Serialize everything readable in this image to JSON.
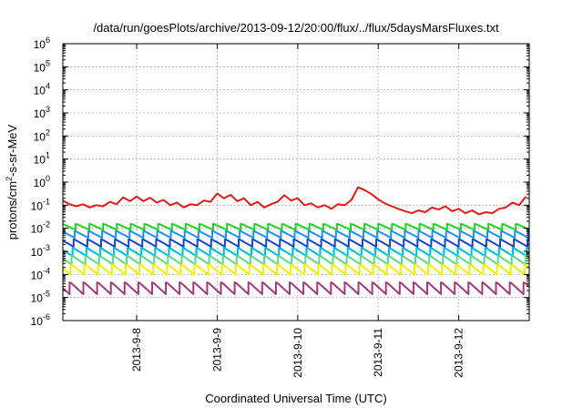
{
  "chart_data": {
    "type": "line",
    "title": "/data/run/goesPlots/archive/2013-09-12/20:00/flux/../flux/5daysMarsFluxes.txt",
    "xlabel": "Coordinated Universal Time (UTC)",
    "ylabel": {
      "before": "protons/cm",
      "exponent": "2",
      "after": "-s-sr-MeV"
    },
    "yscale": "log",
    "ylim": [
      1e-06,
      1000000.0
    ],
    "ytick_exponents": [
      -6,
      -5,
      -4,
      -3,
      -2,
      -1,
      0,
      1,
      2,
      3,
      4,
      5,
      6
    ],
    "ytick_base": "10",
    "xlim": [
      "2013-09-07 02:00",
      "2013-09-12 21:00"
    ],
    "xticks": [
      {
        "label": "2013-9-8",
        "at": "2013-09-08 00:00"
      },
      {
        "label": "2013-9-9",
        "at": "2013-09-09 00:00"
      },
      {
        "label": "2013-9-10",
        "at": "2013-09-10 00:00"
      },
      {
        "label": "2013-9-11",
        "at": "2013-09-11 00:00"
      },
      {
        "label": "2013-9-12",
        "at": "2013-09-12 00:00"
      }
    ],
    "grid": true,
    "series": [
      {
        "color": "#e31a1c",
        "times": [
          "2013-09-07 02:00",
          "2013-09-07 04:00",
          "2013-09-07 06:00",
          "2013-09-07 08:00",
          "2013-09-07 10:00",
          "2013-09-07 12:00",
          "2013-09-07 14:00",
          "2013-09-07 16:00",
          "2013-09-07 18:00",
          "2013-09-07 20:00",
          "2013-09-07 22:00",
          "2013-09-08 00:00",
          "2013-09-08 02:00",
          "2013-09-08 04:00",
          "2013-09-08 06:00",
          "2013-09-08 08:00",
          "2013-09-08 10:00",
          "2013-09-08 12:00",
          "2013-09-08 14:00",
          "2013-09-08 16:00",
          "2013-09-08 18:00",
          "2013-09-08 20:00",
          "2013-09-08 22:00",
          "2013-09-09 00:00",
          "2013-09-09 02:00",
          "2013-09-09 04:00",
          "2013-09-09 06:00",
          "2013-09-09 08:00",
          "2013-09-09 10:00",
          "2013-09-09 12:00",
          "2013-09-09 14:00",
          "2013-09-09 16:00",
          "2013-09-09 18:00",
          "2013-09-09 20:00",
          "2013-09-09 22:00",
          "2013-09-10 00:00",
          "2013-09-10 02:00",
          "2013-09-10 04:00",
          "2013-09-10 06:00",
          "2013-09-10 08:00",
          "2013-09-10 10:00",
          "2013-09-10 12:00",
          "2013-09-10 14:00",
          "2013-09-10 16:00",
          "2013-09-10 18:00",
          "2013-09-10 20:00",
          "2013-09-10 22:00",
          "2013-09-11 00:00",
          "2013-09-11 02:00",
          "2013-09-11 04:00",
          "2013-09-11 06:00",
          "2013-09-11 08:00",
          "2013-09-11 10:00",
          "2013-09-11 12:00",
          "2013-09-11 14:00",
          "2013-09-11 16:00",
          "2013-09-11 18:00",
          "2013-09-11 20:00",
          "2013-09-11 22:00",
          "2013-09-12 00:00",
          "2013-09-12 02:00",
          "2013-09-12 04:00",
          "2013-09-12 06:00",
          "2013-09-12 08:00",
          "2013-09-12 10:00",
          "2013-09-12 12:00",
          "2013-09-12 14:00",
          "2013-09-12 16:00",
          "2013-09-12 18:00",
          "2013-09-12 20:00"
        ],
        "values": [
          0.16,
          0.11,
          0.09,
          0.11,
          0.08,
          0.1,
          0.09,
          0.14,
          0.11,
          0.22,
          0.15,
          0.24,
          0.15,
          0.21,
          0.13,
          0.17,
          0.1,
          0.13,
          0.08,
          0.11,
          0.1,
          0.16,
          0.14,
          0.32,
          0.2,
          0.28,
          0.15,
          0.2,
          0.1,
          0.14,
          0.08,
          0.11,
          0.14,
          0.27,
          0.16,
          0.2,
          0.1,
          0.12,
          0.08,
          0.1,
          0.07,
          0.11,
          0.1,
          0.17,
          0.6,
          0.45,
          0.3,
          0.18,
          0.12,
          0.09,
          0.07,
          0.055,
          0.045,
          0.06,
          0.05,
          0.08,
          0.065,
          0.09,
          0.055,
          0.07,
          0.045,
          0.06,
          0.04,
          0.05,
          0.045,
          0.07,
          0.08,
          0.13,
          0.1,
          0.24
        ]
      },
      {
        "color": "#1fd31f",
        "base": 0.011,
        "amplitude": 0.0045,
        "period_hours": 4.1,
        "phase_hours": 0.3
      },
      {
        "color": "#1e90ff",
        "base": 0.0052,
        "amplitude": 0.0024,
        "period_hours": 4.1,
        "phase_hours": 0.6
      },
      {
        "color": "#1447c8",
        "base": 0.0022,
        "amplitude": 0.0011,
        "period_hours": 4.1,
        "phase_hours": 0.9
      },
      {
        "color": "#00bcd4",
        "base": 0.0009,
        "amplitude": 0.0005,
        "period_hours": 4.1,
        "phase_hours": 1.2
      },
      {
        "color": "#5fd88a",
        "base": 0.0004,
        "amplitude": 0.00024,
        "period_hours": 4.1,
        "phase_hours": 1.5
      },
      {
        "color": "#f0f000",
        "base": 0.00016,
        "amplitude": 0.00011,
        "period_hours": 4.1,
        "phase_hours": 1.8
      },
      {
        "color": "#a23b72",
        "base": 2.5e-05,
        "amplitude": 2e-05,
        "period_hours": 4.1,
        "phase_hours": 2.1
      }
    ]
  }
}
